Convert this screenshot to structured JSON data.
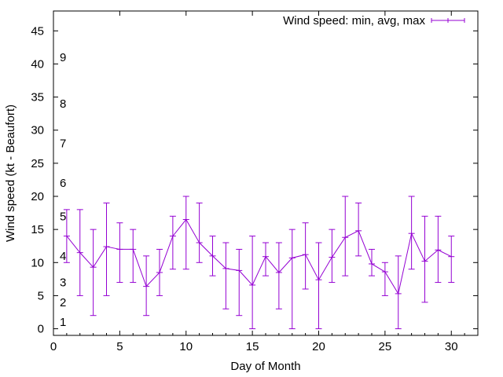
{
  "chart_data": {
    "type": "line",
    "xlabel": "Day of Month",
    "ylabel": "Wind speed (kt - Beaufort)",
    "xlim": [
      0,
      32
    ],
    "ylim": [
      -1,
      48
    ],
    "xticks": [
      "0",
      "5",
      "10",
      "15",
      "20",
      "25",
      "30"
    ],
    "yticks": [
      "0",
      "5",
      "10",
      "15",
      "20",
      "25",
      "30",
      "35",
      "40",
      "45"
    ],
    "grid": false,
    "legend_position": "top-right",
    "series_color": "#9400d3",
    "series": [
      {
        "name": "Wind speed: min, avg, max",
        "x": [
          1,
          2,
          3,
          4,
          5,
          6,
          7,
          8,
          9,
          10,
          11,
          12,
          13,
          14,
          15,
          16,
          17,
          18,
          19,
          20,
          21,
          22,
          23,
          24,
          25,
          26,
          27,
          28,
          29,
          30
        ],
        "avg": [
          14,
          11.5,
          9.3,
          12.4,
          12,
          12,
          6.4,
          8.5,
          14,
          16.5,
          13,
          11,
          9.1,
          8.8,
          6.6,
          10.9,
          8.5,
          10.7,
          11.2,
          7.4,
          10.8,
          13.8,
          14.8,
          9.8,
          8.6,
          5.3,
          14.4,
          10.2,
          11.9,
          10.9
        ],
        "min": [
          10,
          5,
          2,
          5,
          7,
          7,
          2,
          5,
          9,
          9,
          10,
          8,
          3,
          2,
          0,
          8,
          3,
          0,
          6,
          0,
          7,
          8,
          11,
          8,
          5,
          0,
          9,
          4,
          7,
          7
        ],
        "max": [
          18,
          18,
          15,
          19,
          16,
          15,
          11,
          12,
          17,
          20,
          19,
          14,
          13,
          12,
          14,
          13,
          13,
          15,
          16,
          13,
          15,
          20,
          19,
          12,
          10,
          11,
          20,
          17,
          17,
          14
        ]
      }
    ],
    "annotations": [
      {
        "text": "1",
        "y": 1
      },
      {
        "text": "2",
        "y": 4
      },
      {
        "text": "3",
        "y": 7
      },
      {
        "text": "4",
        "y": 11
      },
      {
        "text": "5",
        "y": 17
      },
      {
        "text": "6",
        "y": 22
      },
      {
        "text": "7",
        "y": 28
      },
      {
        "text": "8",
        "y": 34
      },
      {
        "text": "9",
        "y": 41
      }
    ]
  }
}
